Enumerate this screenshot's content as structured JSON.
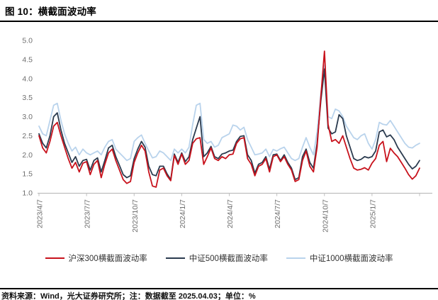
{
  "header": {
    "title": "图 10：横截面波动率"
  },
  "footer": {
    "source": "资料来源：Wind，光大证券研究所；注：数据截至 2025.04.03；单位：%"
  },
  "chart_data": {
    "type": "line",
    "title": "横截面波动率",
    "unit": "%",
    "xlabel": "",
    "ylabel": "",
    "ylim": [
      1.0,
      5.0
    ],
    "ytick_step": 0.5,
    "yticks": [
      "5.0",
      "4.5",
      "4.0",
      "3.5",
      "3.0",
      "2.5",
      "2.0",
      "1.5",
      "1.0"
    ],
    "grid": false,
    "legend_position": "bottom",
    "x_start": "2023/4/7",
    "x_end": "2025/4/3",
    "x_frequency": "weekly",
    "xticks": [
      {
        "index": 0,
        "label": "2023/4/7"
      },
      {
        "index": 13,
        "label": "2023/7/7"
      },
      {
        "index": 26,
        "label": "2023/10/7"
      },
      {
        "index": 39,
        "label": "2024/1/7"
      },
      {
        "index": 52,
        "label": "2024/4/7"
      },
      {
        "index": 65,
        "label": "2024/7/7"
      },
      {
        "index": 78,
        "label": "2024/10/7"
      },
      {
        "index": 91,
        "label": "2025/1/7"
      },
      {
        "index": 104,
        "label": ""
      }
    ],
    "axis_color": "#bfbfbf",
    "tick_label_color": "#6e6e6e",
    "series": [
      {
        "name": "沪深300横截面波动率",
        "color": "#c8121c",
        "values": [
          2.5,
          2.18,
          2.05,
          2.35,
          2.75,
          2.85,
          2.5,
          2.2,
          1.9,
          1.65,
          1.8,
          1.55,
          1.78,
          1.82,
          1.48,
          1.75,
          1.85,
          1.4,
          1.75,
          2.05,
          2.15,
          1.85,
          1.6,
          1.35,
          1.25,
          1.3,
          1.8,
          2.05,
          2.25,
          2.1,
          1.55,
          1.18,
          1.15,
          1.6,
          1.65,
          1.45,
          1.32,
          1.98,
          1.75,
          2.02,
          1.75,
          1.85,
          2.3,
          2.42,
          2.45,
          1.75,
          1.95,
          2.18,
          1.9,
          1.85,
          1.95,
          1.9,
          2.0,
          2.02,
          2.3,
          2.42,
          2.45,
          1.9,
          1.75,
          1.45,
          1.7,
          1.75,
          1.9,
          1.55,
          1.95,
          2.0,
          1.82,
          1.95,
          1.75,
          1.6,
          1.3,
          1.35,
          1.85,
          2.1,
          1.7,
          1.55,
          2.2,
          3.5,
          4.72,
          2.8,
          2.35,
          2.4,
          2.3,
          2.5,
          2.2,
          1.9,
          1.65,
          1.6,
          1.62,
          1.66,
          1.6,
          1.78,
          1.9,
          2.25,
          2.35,
          1.82,
          2.17,
          2.05,
          1.95,
          1.8,
          1.65,
          1.48,
          1.36,
          1.45,
          1.65
        ]
      },
      {
        "name": "中证500横截面波动率",
        "color": "#2b3b4f",
        "values": [
          2.55,
          2.3,
          2.18,
          2.5,
          3.0,
          3.1,
          2.65,
          2.3,
          2.05,
          1.8,
          1.95,
          1.7,
          1.85,
          1.88,
          1.6,
          1.85,
          1.92,
          1.55,
          1.85,
          2.18,
          2.25,
          1.95,
          1.72,
          1.48,
          1.4,
          1.45,
          1.9,
          2.15,
          2.35,
          2.2,
          1.7,
          1.48,
          1.45,
          1.7,
          1.7,
          1.5,
          1.35,
          2.02,
          1.8,
          2.05,
          1.82,
          1.95,
          2.4,
          2.7,
          3.0,
          1.95,
          2.05,
          2.22,
          1.95,
          1.9,
          2.02,
          2.05,
          2.1,
          2.12,
          2.35,
          2.48,
          2.5,
          2.0,
          1.85,
          1.52,
          1.75,
          1.8,
          1.95,
          1.62,
          2.0,
          2.02,
          1.85,
          2.0,
          1.8,
          1.65,
          1.35,
          1.4,
          1.95,
          2.15,
          1.8,
          1.65,
          2.3,
          3.4,
          4.25,
          2.7,
          2.55,
          2.6,
          3.05,
          2.95,
          2.5,
          2.2,
          1.9,
          1.85,
          1.88,
          1.95,
          1.92,
          1.95,
          2.1,
          2.6,
          2.65,
          2.47,
          2.52,
          2.4,
          2.2,
          2.05,
          1.9,
          1.75,
          1.63,
          1.7,
          1.85
        ]
      },
      {
        "name": "中证1000横截面波动率",
        "color": "#b9d3ec",
        "values": [
          2.75,
          2.55,
          2.5,
          2.9,
          3.3,
          3.35,
          2.9,
          2.55,
          2.3,
          2.1,
          2.2,
          2.0,
          2.15,
          2.05,
          2.0,
          2.05,
          2.1,
          2.0,
          2.2,
          2.35,
          2.4,
          2.15,
          2.05,
          1.95,
          1.85,
          1.9,
          2.35,
          2.45,
          2.52,
          2.3,
          2.1,
          1.92,
          1.95,
          2.1,
          2.05,
          1.95,
          1.85,
          2.15,
          2.05,
          2.15,
          2.05,
          2.2,
          2.8,
          3.3,
          3.35,
          2.4,
          2.3,
          2.35,
          2.2,
          2.25,
          2.45,
          2.5,
          2.55,
          2.78,
          2.75,
          2.65,
          2.72,
          2.4,
          2.2,
          2.0,
          2.02,
          2.05,
          2.15,
          1.95,
          2.14,
          2.1,
          2.16,
          2.2,
          2.05,
          1.9,
          1.85,
          1.9,
          2.2,
          2.45,
          2.2,
          2.0,
          2.6,
          3.6,
          4.35,
          3.0,
          2.95,
          3.2,
          3.15,
          3.0,
          2.75,
          2.6,
          2.45,
          2.4,
          2.5,
          2.55,
          2.3,
          2.15,
          2.4,
          2.85,
          2.8,
          2.78,
          2.9,
          2.75,
          2.6,
          2.45,
          2.3,
          2.2,
          2.18,
          2.25,
          2.3
        ]
      }
    ]
  }
}
